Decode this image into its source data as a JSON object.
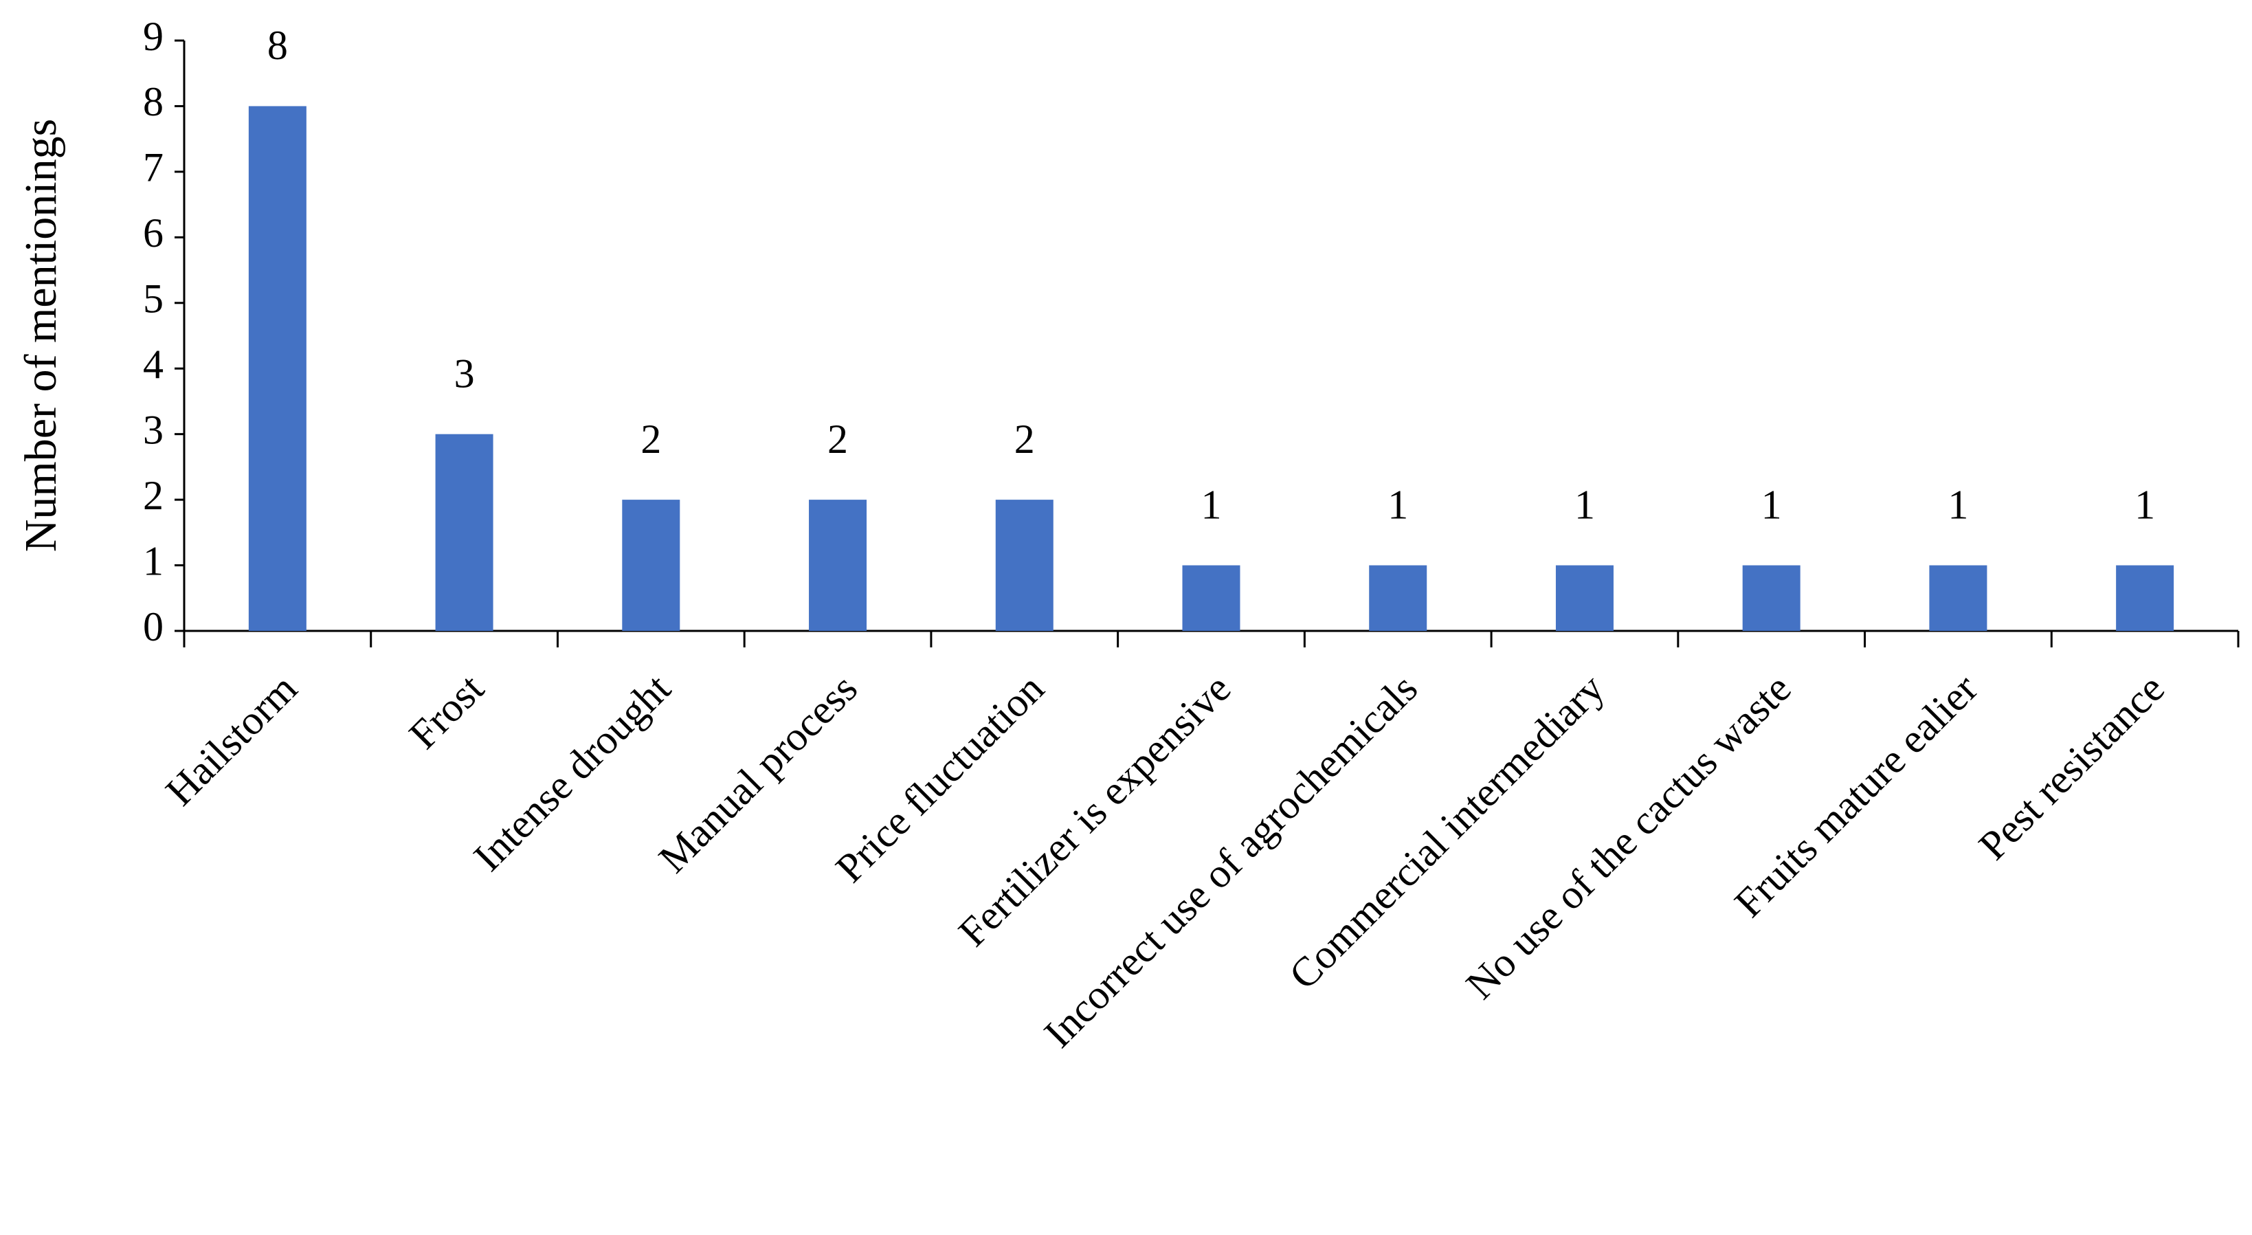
{
  "chart_data": {
    "type": "bar",
    "y_label": "Number of mentionings",
    "categories": [
      "Hailstorm",
      "Frost",
      "Intense drought",
      "Manual process",
      "Price fluctuation",
      "Fertilizer is expensive",
      "Incorrect use of agrochemicals",
      "Commercial intermediary",
      "No use of the cactus waste",
      "Fruits mature ealier",
      "Pest resistance"
    ],
    "values": [
      8,
      3,
      2,
      2,
      2,
      1,
      1,
      1,
      1,
      1,
      1
    ],
    "color": "#4472c4",
    "ylim": [
      0,
      9
    ],
    "yticks": [
      0,
      1,
      2,
      3,
      4,
      5,
      6,
      7,
      8,
      9
    ],
    "grid": false
  }
}
